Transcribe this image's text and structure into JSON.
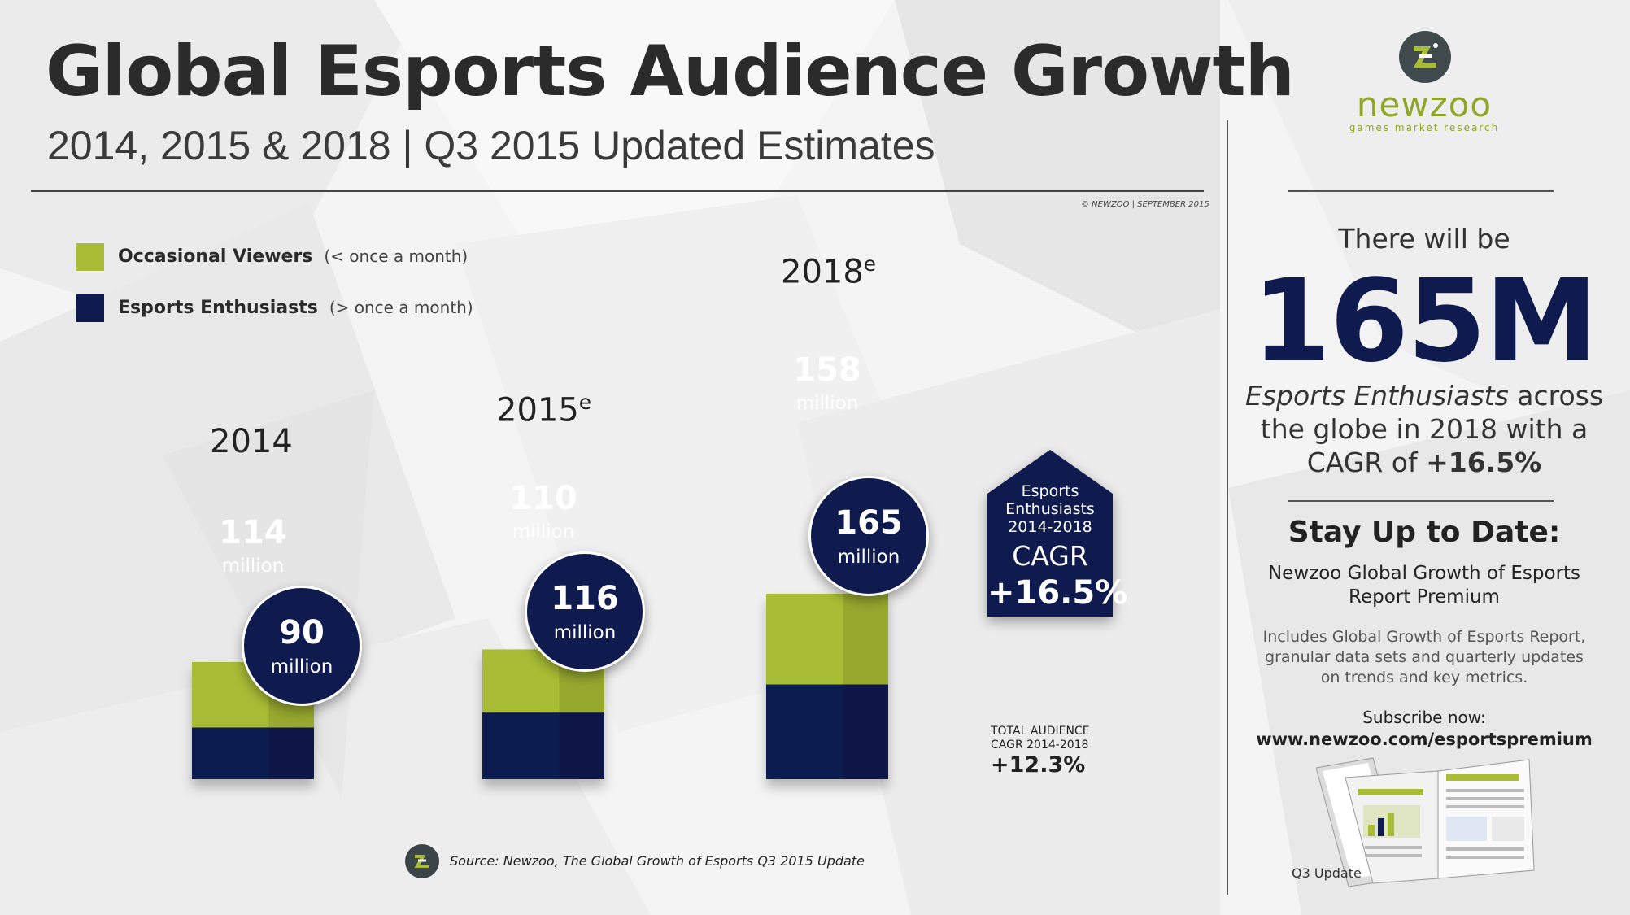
{
  "header": {
    "title": "Global Esports Audience Growth",
    "subtitle": "2014, 2015 & 2018 | Q3 2015 Updated Estimates",
    "copyright": "© NEWZOO | SEPTEMBER 2015"
  },
  "legend": {
    "occasional": {
      "label": "Occasional Viewers",
      "note": "(< once a month)"
    },
    "enthusiasts": {
      "label": "Esports Enthusiasts",
      "note": "(> once a month)"
    }
  },
  "colors": {
    "occasional": "#a8bc35",
    "enthusiasts": "#0f1b4f",
    "brand": "#8fa52a"
  },
  "chart_data": {
    "type": "bar",
    "stacked": true,
    "categories": [
      "2014",
      "2015",
      "2018"
    ],
    "category_superscripts": [
      "",
      "e",
      "e"
    ],
    "series": [
      {
        "name": "Esports Enthusiasts",
        "values": [
          90,
          116,
          165
        ]
      },
      {
        "name": "Occasional Viewers",
        "values": [
          114,
          110,
          158
        ]
      }
    ],
    "unit_label": "million",
    "annotations": {
      "enthusiasts_cagr": {
        "line1": "Esports",
        "line2": "Enthusiasts",
        "line3": "2014-2018",
        "label": "CAGR",
        "value": "+16.5%"
      },
      "total_cagr": {
        "line1": "TOTAL AUDIENCE",
        "line2": "CAGR 2014-2018",
        "value": "+12.3%"
      }
    }
  },
  "source": {
    "text": "Source: Newzoo, The Global Growth of Esports Q3 2015 Update"
  },
  "sidebar": {
    "brand": "newzoo",
    "tagline": "games market research",
    "intro": "There will be",
    "big_stat": "165M",
    "stat_italic": "Esports Enthusiasts",
    "stat_rest1": " across",
    "stat_line2": "the globe in 2018 with a",
    "stat_line3a": "CAGR of ",
    "stat_line3b": "+16.5%",
    "stay_title": "Stay Up to Date:",
    "report_line1": "Newzoo Global Growth of Esports",
    "report_line2": "Report Premium",
    "includes_line1": "Includes Global Growth of Esports Report,",
    "includes_line2": "granular data sets and quarterly updates",
    "includes_line3": "on trends and key metrics.",
    "subscribe": "Subscribe now:",
    "url": "www.newzoo.com/esportspremium",
    "report_caption": "Q3 Update"
  }
}
